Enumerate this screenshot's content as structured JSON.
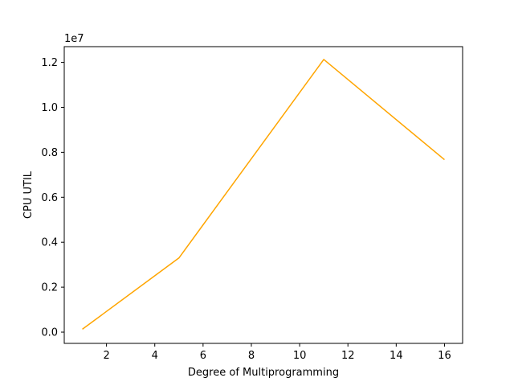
{
  "chart_data": {
    "type": "line",
    "title": "",
    "xlabel": "Degree of Multiprogramming",
    "ylabel": "CPU UTIL",
    "y_offset_label": "1e7",
    "xlim": [
      0.25,
      16.75
    ],
    "ylim": [
      -0.05,
      1.27
    ],
    "grid": false,
    "legend": "none",
    "x_ticks": [
      {
        "value": 2,
        "label": "2"
      },
      {
        "value": 4,
        "label": "4"
      },
      {
        "value": 6,
        "label": "6"
      },
      {
        "value": 8,
        "label": "8"
      },
      {
        "value": 10,
        "label": "10"
      },
      {
        "value": 12,
        "label": "12"
      },
      {
        "value": 14,
        "label": "14"
      },
      {
        "value": 16,
        "label": "16"
      }
    ],
    "y_ticks": [
      {
        "value": 0.0,
        "label": "0.0"
      },
      {
        "value": 0.2,
        "label": "0.2"
      },
      {
        "value": 0.4,
        "label": "0.4"
      },
      {
        "value": 0.6,
        "label": "0.6"
      },
      {
        "value": 0.8,
        "label": "0.8"
      },
      {
        "value": 1.0,
        "label": "1.0"
      },
      {
        "value": 1.2,
        "label": "1.2"
      }
    ],
    "series": [
      {
        "color": "#ffa500",
        "x": [
          1,
          5,
          11,
          16
        ],
        "y": [
          0.013,
          0.33,
          1.213,
          0.767
        ]
      }
    ]
  }
}
